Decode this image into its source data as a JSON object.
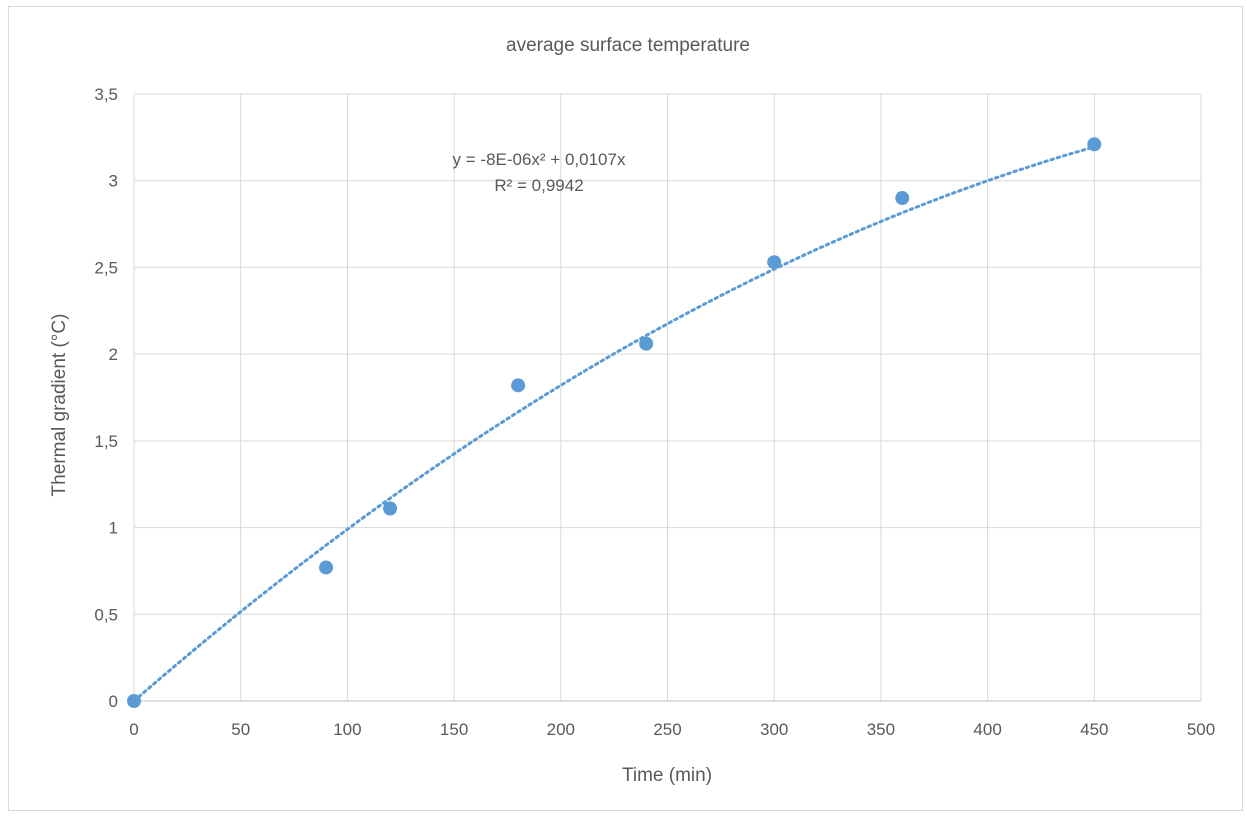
{
  "chart_data": {
    "type": "scatter",
    "title": "average surface temperature",
    "xlabel": "Time (min)",
    "ylabel": "Thermal gradient (°C)",
    "xlim": [
      0,
      500
    ],
    "ylim": [
      0,
      3.5
    ],
    "x_ticks": [
      0,
      50,
      100,
      150,
      200,
      250,
      300,
      350,
      400,
      450,
      500
    ],
    "y_ticks": [
      0,
      0.5,
      1,
      1.5,
      2,
      2.5,
      3,
      3.5
    ],
    "x_tick_labels": [
      "0",
      "50",
      "100",
      "150",
      "200",
      "250",
      "300",
      "350",
      "400",
      "450",
      "500"
    ],
    "y_tick_labels": [
      "0",
      "0,5",
      "1",
      "1,5",
      "2",
      "2,5",
      "3",
      "3,5"
    ],
    "grid": true,
    "legend": "none",
    "series": [
      {
        "x": [
          0,
          90,
          120,
          180,
          240,
          300,
          360,
          450
        ],
        "y": [
          0,
          0.77,
          1.11,
          1.82,
          2.06,
          2.53,
          2.9,
          3.21
        ],
        "color": "#5b9bd5"
      }
    ],
    "trendline": {
      "type": "polynomial",
      "order": 2,
      "coefficients": {
        "a": -8e-06,
        "b": 0.0107,
        "c": 0
      },
      "x_range": [
        0,
        450
      ],
      "style": "dotted",
      "color": "#5b9bd5",
      "equation_label": "y = -8E-06x² + 0,0107x",
      "r2_label": "R² = 0,9942"
    }
  }
}
